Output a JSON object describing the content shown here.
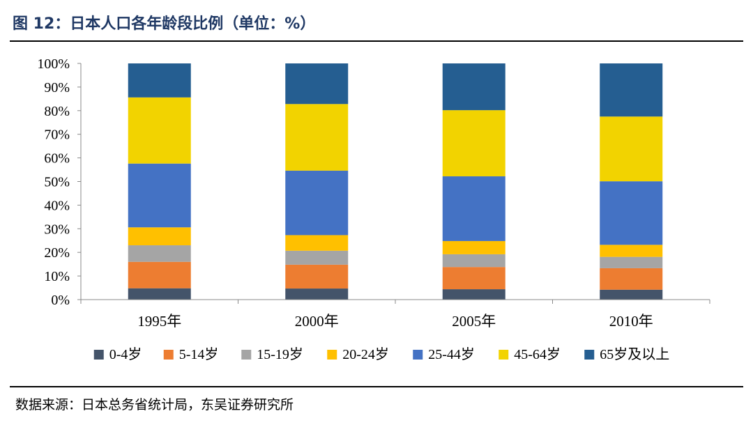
{
  "title": "图 12：日本人口各年龄段比例（单位：%）",
  "source": "数据来源：日本总务省统计局，东吴证券研究所",
  "chart_data": {
    "type": "bar",
    "stacked": true,
    "categories": [
      "1995年",
      "2000年",
      "2005年",
      "2010年"
    ],
    "y_ticks": [
      "0%",
      "10%",
      "20%",
      "30%",
      "40%",
      "50%",
      "60%",
      "70%",
      "80%",
      "90%",
      "100%"
    ],
    "ylim": [
      0,
      100
    ],
    "grid": false,
    "legend_position": "bottom",
    "series": [
      {
        "name": "0-4岁",
        "color": "#44546a",
        "values": [
          4.8,
          4.7,
          4.4,
          4.2
        ]
      },
      {
        "name": "5-14岁",
        "color": "#ed7d31",
        "values": [
          11.2,
          10.1,
          9.4,
          9.1
        ]
      },
      {
        "name": "15-19岁",
        "color": "#a5a5a5",
        "values": [
          7.0,
          5.9,
          5.4,
          4.8
        ]
      },
      {
        "name": "20-24岁",
        "color": "#ffc000",
        "values": [
          7.6,
          6.6,
          5.6,
          5.1
        ]
      },
      {
        "name": "25-44岁",
        "color": "#4472c4",
        "values": [
          27.0,
          27.3,
          27.4,
          26.9
        ]
      },
      {
        "name": "45-64岁",
        "color": "#f2d300",
        "values": [
          28.0,
          28.2,
          28.0,
          27.4
        ]
      },
      {
        "name": "65岁及以上",
        "color": "#255e91",
        "values": [
          14.4,
          17.2,
          19.8,
          22.5
        ]
      }
    ]
  }
}
